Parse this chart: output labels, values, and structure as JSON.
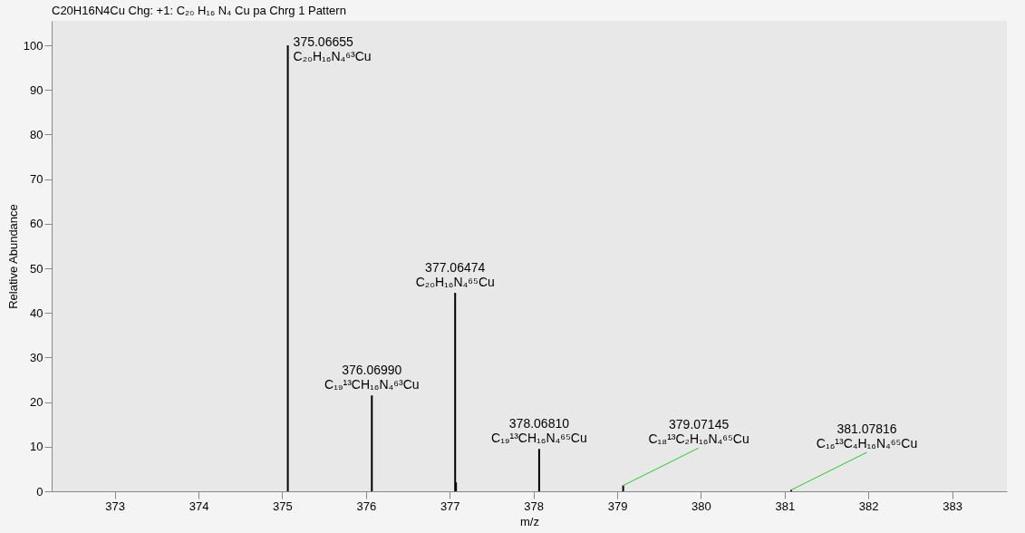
{
  "chart_data": {
    "type": "bar",
    "title": "C20H16N4Cu Chg: +1: C₂₀ H₁₆ N₄ Cu  pa Chrg 1 Pattern",
    "xlabel": "m/z",
    "ylabel": "Relative Abundance",
    "x": [
      375.06655,
      376.0699,
      377.06474,
      377.075,
      378.0681,
      379.07145,
      381.07816
    ],
    "values": [
      100,
      21.5,
      44.5,
      2,
      9.5,
      1.3,
      0.3
    ],
    "color": "#000000",
    "xlim": [
      372.3,
      383.6
    ],
    "xticks": [
      373,
      374,
      375,
      376,
      377,
      378,
      379,
      380,
      381,
      382,
      383
    ],
    "ylim": [
      0,
      105.5
    ],
    "yticks": [
      0,
      10,
      20,
      30,
      40,
      50,
      60,
      70,
      80,
      90,
      100
    ],
    "grid": false,
    "annotations": [
      {
        "text": "375.06655\nC₂₀H₁₆N₄⁶³Cu",
        "x": 375.06655,
        "y": 100
      },
      {
        "text": "376.06990\nC₁₉¹³CH₁₆N₄⁶³Cu",
        "x": 376.0699,
        "y": 21.5
      },
      {
        "text": "377.06474\nC₂₀H₁₆N₄⁶⁵Cu",
        "x": 377.06474,
        "y": 44.5
      },
      {
        "text": "378.06810\nC₁₉¹³CH₁₆N₄⁶⁵Cu",
        "x": 378.0681,
        "y": 9.5
      },
      {
        "text": "379.07145\nC₁₈¹³C₂H₁₆N₄⁶⁵Cu",
        "x": 379.07145,
        "y": 1.3
      },
      {
        "text": "381.07816\nC₁₆¹³C₄H₁₆N₄⁶⁵Cu",
        "x": 381.07816,
        "y": 0.3
      }
    ]
  }
}
